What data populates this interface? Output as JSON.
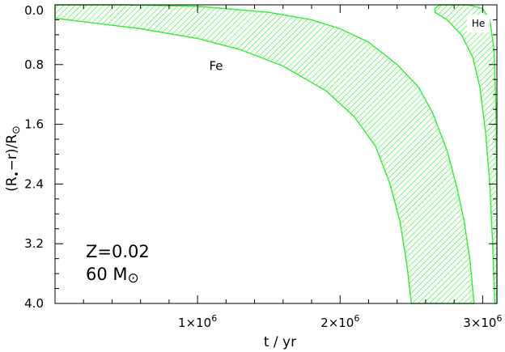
{
  "chart_data": {
    "type": "area",
    "xlabel": "t / yr",
    "ylabel_parts": {
      "open": "(R",
      "star": "•",
      "mid": "−r)/R",
      "sun": "⊙"
    },
    "x_range": [
      0,
      3100000
    ],
    "y_range": [
      0.0,
      4.0
    ],
    "y_inverted": true,
    "x_ticks": [
      {
        "value": 1000000,
        "mantissa": "1×10",
        "exp": "6"
      },
      {
        "value": 2000000,
        "mantissa": "2×10",
        "exp": "6"
      },
      {
        "value": 3000000,
        "mantissa": "3×10",
        "exp": "6"
      }
    ],
    "y_ticks": [
      {
        "value": 0.0,
        "label": "0.0"
      },
      {
        "value": 0.8,
        "label": "0.8"
      },
      {
        "value": 1.6,
        "label": "1.6"
      },
      {
        "value": 2.4,
        "label": "2.4"
      },
      {
        "value": 3.2,
        "label": "3.2"
      },
      {
        "value": 4.0,
        "label": "4.0"
      }
    ],
    "series_color": "#33ee33",
    "zones": [
      {
        "name": "Fe",
        "label": "Fe",
        "label_at": [
          1130000,
          0.82
        ],
        "upper": [
          [
            0,
            0.0
          ],
          [
            500000,
            0.0
          ],
          [
            1000000,
            0.02
          ],
          [
            1500000,
            0.1
          ],
          [
            1800000,
            0.2
          ],
          [
            2000000,
            0.32
          ],
          [
            2200000,
            0.5
          ],
          [
            2400000,
            0.8
          ],
          [
            2550000,
            1.1
          ],
          [
            2650000,
            1.45
          ],
          [
            2750000,
            1.95
          ],
          [
            2820000,
            2.45
          ],
          [
            2870000,
            2.9
          ],
          [
            2910000,
            3.4
          ],
          [
            2940000,
            4.0
          ]
        ],
        "lower": [
          [
            0,
            0.18
          ],
          [
            300000,
            0.25
          ],
          [
            600000,
            0.32
          ],
          [
            1000000,
            0.45
          ],
          [
            1300000,
            0.6
          ],
          [
            1600000,
            0.82
          ],
          [
            1900000,
            1.15
          ],
          [
            2100000,
            1.5
          ],
          [
            2250000,
            1.9
          ],
          [
            2350000,
            2.4
          ],
          [
            2420000,
            2.9
          ],
          [
            2470000,
            3.5
          ],
          [
            2500000,
            4.0
          ]
        ]
      },
      {
        "name": "He",
        "label": "He",
        "label_at": [
          2970000,
          0.24
        ],
        "upper": [
          [
            2665000,
            0.05
          ],
          [
            2700000,
            0.0
          ],
          [
            2900000,
            0.0
          ],
          [
            3000000,
            0.05
          ],
          [
            3050000,
            0.2
          ],
          [
            3080000,
            0.6
          ],
          [
            3095000,
            1.5
          ],
          [
            3100000,
            3.0
          ],
          [
            3100000,
            4.0
          ]
        ],
        "lower": [
          [
            2665000,
            0.1
          ],
          [
            2750000,
            0.2
          ],
          [
            2850000,
            0.4
          ],
          [
            2930000,
            0.7
          ],
          [
            2980000,
            1.1
          ],
          [
            3020000,
            1.7
          ],
          [
            3050000,
            2.4
          ],
          [
            3070000,
            3.2
          ],
          [
            3085000,
            4.0
          ]
        ]
      }
    ],
    "annotation": {
      "line1": "Z=0.02",
      "line2_value": "60 M",
      "line2_sun": "⊙"
    }
  }
}
